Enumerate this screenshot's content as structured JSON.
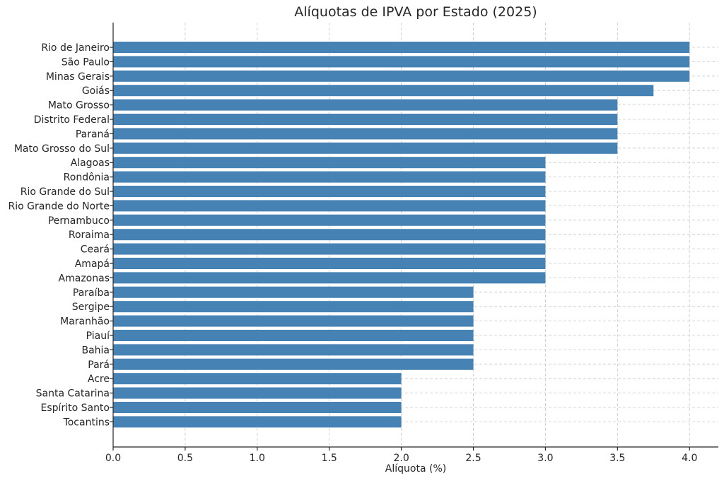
{
  "chart_data": {
    "type": "bar",
    "orientation": "horizontal",
    "title": "Alíquotas de IPVA por Estado (2025)",
    "xlabel": "Alíquota (%)",
    "ylabel": "",
    "xlim": [
      0,
      4.2
    ],
    "xticks": [
      "0.0",
      "0.5",
      "1.0",
      "1.5",
      "2.0",
      "2.5",
      "3.0",
      "3.5",
      "4.0"
    ],
    "grid": true,
    "bar_color": "#4682b4",
    "categories": [
      "Rio de Janeiro",
      "São Paulo",
      "Minas Gerais",
      "Goiás",
      "Mato Grosso",
      "Distrito Federal",
      "Paraná",
      "Mato Grosso do Sul",
      "Alagoas",
      "Rondônia",
      "Rio Grande do Sul",
      "Rio Grande do Norte",
      "Pernambuco",
      "Roraima",
      "Ceará",
      "Amapá",
      "Amazonas",
      "Paraíba",
      "Sergipe",
      "Maranhão",
      "Piauí",
      "Bahia",
      "Pará",
      "Acre",
      "Santa Catarina",
      "Espírito Santo",
      "Tocantins"
    ],
    "values": [
      4.0,
      4.0,
      4.0,
      3.75,
      3.5,
      3.5,
      3.5,
      3.5,
      3.0,
      3.0,
      3.0,
      3.0,
      3.0,
      3.0,
      3.0,
      3.0,
      3.0,
      2.5,
      2.5,
      2.5,
      2.5,
      2.5,
      2.5,
      2.0,
      2.0,
      2.0,
      2.0
    ]
  }
}
